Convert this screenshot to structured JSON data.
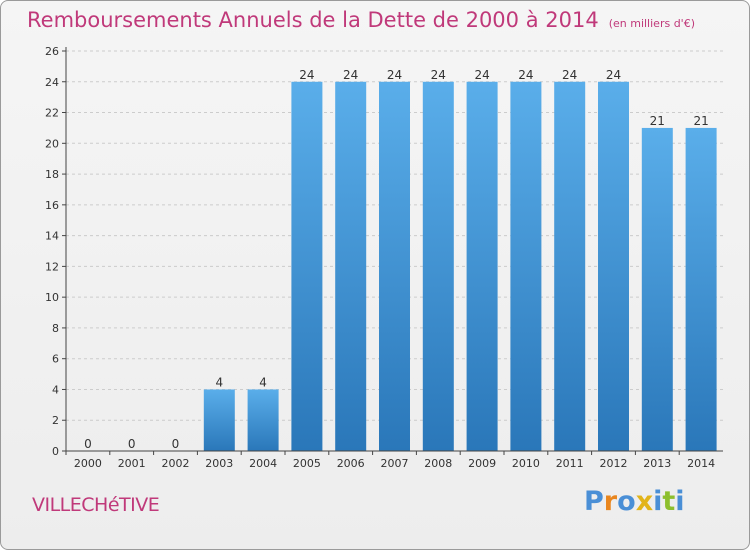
{
  "header": {
    "title": "Remboursements Annuels de la Dette de 2000 à 2014",
    "subtitle": "(en milliers d'€)"
  },
  "footer": {
    "commune": "VILLECHéTIVE",
    "logo": "Proxiti"
  },
  "colors": {
    "title": "#c0397a",
    "bar_top": "#5aaeea",
    "bar_bottom": "#2a77b9",
    "background": "#f0f0f0",
    "grid": "#cccccc"
  },
  "chart_data": {
    "type": "bar",
    "title": "Remboursements Annuels de la Dette de 2000 à 2014",
    "subtitle": "(en milliers d'€)",
    "categories": [
      "2000",
      "2001",
      "2002",
      "2003",
      "2004",
      "2005",
      "2006",
      "2007",
      "2008",
      "2009",
      "2010",
      "2011",
      "2012",
      "2013",
      "2014"
    ],
    "values": [
      0,
      0,
      0,
      4,
      4,
      24,
      24,
      24,
      24,
      24,
      24,
      24,
      24,
      21,
      21
    ],
    "value_labels": [
      "0",
      "0",
      "0",
      "4",
      "4",
      "24",
      "24",
      "24",
      "24",
      "24",
      "24",
      "24",
      "24",
      "21",
      "21"
    ],
    "yticks": [
      0,
      2,
      4,
      6,
      8,
      10,
      12,
      14,
      16,
      18,
      20,
      22,
      24,
      26
    ],
    "ylim": [
      0,
      26
    ],
    "grid": "horizontal dashed",
    "legend": "none"
  }
}
